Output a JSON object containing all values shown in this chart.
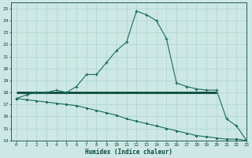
{
  "xlabel": "Humidex (Indice chaleur)",
  "xlim": [
    -0.5,
    23
  ],
  "ylim": [
    14,
    25.5
  ],
  "yticks": [
    14,
    15,
    16,
    17,
    18,
    19,
    20,
    21,
    22,
    23,
    24,
    25
  ],
  "xticks": [
    0,
    1,
    2,
    3,
    4,
    5,
    6,
    7,
    8,
    9,
    10,
    11,
    12,
    13,
    14,
    15,
    16,
    17,
    18,
    19,
    20,
    21,
    22,
    23
  ],
  "background_color": "#cde8e4",
  "grid_color": "#b0d8d0",
  "line_color": "#1a6b5a",
  "thick_line_color": "#0a4a3a",
  "humidex_x": [
    0,
    1,
    2,
    3,
    4,
    5,
    6,
    7,
    8,
    9,
    10,
    11,
    12,
    13,
    14,
    15,
    16,
    17,
    18,
    19,
    20,
    21,
    22,
    23
  ],
  "humidex_y": [
    17.5,
    17.8,
    18.0,
    18.0,
    18.2,
    18.0,
    18.5,
    19.5,
    19.5,
    20.5,
    21.5,
    22.2,
    24.8,
    24.5,
    24.0,
    22.5,
    18.8,
    18.5,
    18.3,
    18.2,
    18.2,
    15.8,
    15.2,
    14.0
  ],
  "temp_x": [
    0,
    1,
    2,
    3,
    4,
    5,
    6,
    7,
    8,
    9,
    10,
    11,
    12,
    13,
    14,
    15,
    16,
    17,
    18,
    19,
    20,
    21,
    22,
    23
  ],
  "temp_y": [
    17.5,
    17.4,
    17.3,
    17.2,
    17.1,
    17.0,
    16.9,
    16.7,
    16.5,
    16.3,
    16.1,
    15.8,
    15.6,
    15.4,
    15.2,
    15.0,
    14.8,
    14.6,
    14.4,
    14.3,
    14.2,
    14.1,
    14.1,
    14.0
  ],
  "flat_line_x": [
    0,
    20
  ],
  "flat_line_y": [
    18.0,
    18.0
  ]
}
